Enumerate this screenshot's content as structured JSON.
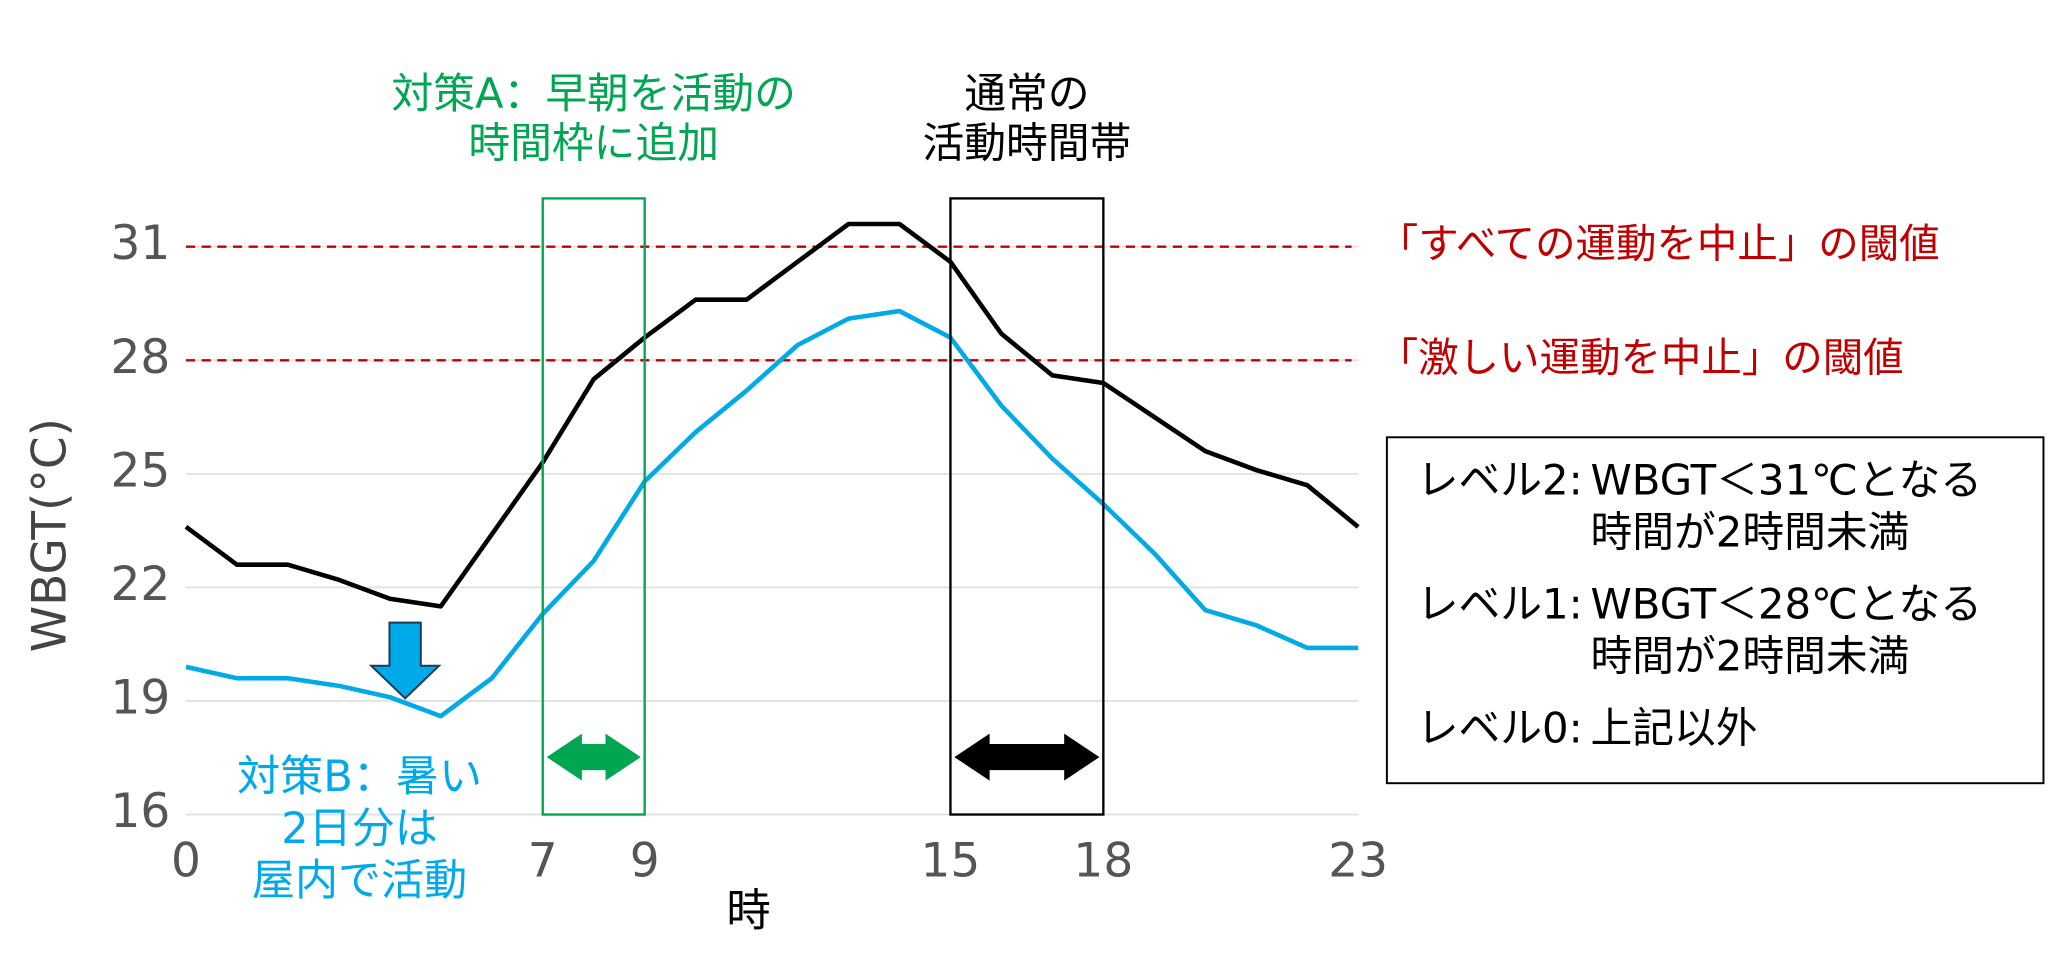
{
  "chart_data": {
    "type": "line",
    "x": [
      0,
      1,
      2,
      3,
      4,
      5,
      6,
      7,
      8,
      9,
      10,
      11,
      12,
      13,
      14,
      15,
      16,
      17,
      18,
      19,
      20,
      21,
      22,
      23
    ],
    "series": [
      {
        "color": "#000000",
        "values": [
          23.6,
          22.6,
          22.6,
          22.2,
          21.7,
          21.5,
          23.4,
          25.3,
          27.5,
          28.6,
          29.6,
          29.6,
          30.6,
          31.6,
          31.6,
          30.6,
          28.7,
          27.6,
          27.4,
          26.5,
          25.6,
          25.1,
          24.7,
          23.6
        ]
      },
      {
        "color": "#00a9e8",
        "values": [
          19.9,
          19.6,
          19.6,
          19.4,
          19.1,
          18.6,
          19.6,
          21.3,
          22.7,
          24.8,
          26.1,
          27.2,
          28.4,
          29.1,
          29.3,
          28.6,
          26.8,
          25.4,
          24.2,
          22.9,
          21.4,
          21.0,
          20.4,
          20.4
        ]
      }
    ],
    "xlim": [
      0,
      23
    ],
    "xticks": [
      0,
      7,
      9,
      15,
      18,
      23
    ],
    "ylim": [
      16,
      31
    ],
    "yticks": [
      16,
      19,
      22,
      25,
      28,
      31
    ],
    "xlabel": "時",
    "ylabel": "WBGT(°C)",
    "grid": true,
    "thresholds": [
      {
        "value": 31,
        "label": "「すべての運動を中止」の閾値",
        "color": "#c00000"
      },
      {
        "value": 28,
        "label": "「激しい運動を中止」の閾値",
        "color": "#c00000"
      }
    ],
    "spans": [
      {
        "start": 7,
        "end": 9,
        "color": "#00a651",
        "lines": [
          "対策A：早朝を活動の",
          "時間枠に追加"
        ]
      },
      {
        "start": 15,
        "end": 18,
        "color": "#000000",
        "lines": [
          "通常の",
          "活動時間帯"
        ]
      }
    ],
    "note": {
      "color": "#00a9e8",
      "lines": [
        "対策B：暑い",
        "2日分は",
        "屋内で活動"
      ]
    },
    "levels": [
      {
        "level": "レベル2:",
        "lines": [
          "WBGT＜31℃となる",
          "時間が2時間未満"
        ]
      },
      {
        "level": "レベル1:",
        "lines": [
          "WBGT＜28℃となる",
          "時間が2時間未満"
        ]
      },
      {
        "level": "レベル0:",
        "lines": [
          "上記以外"
        ]
      }
    ]
  }
}
